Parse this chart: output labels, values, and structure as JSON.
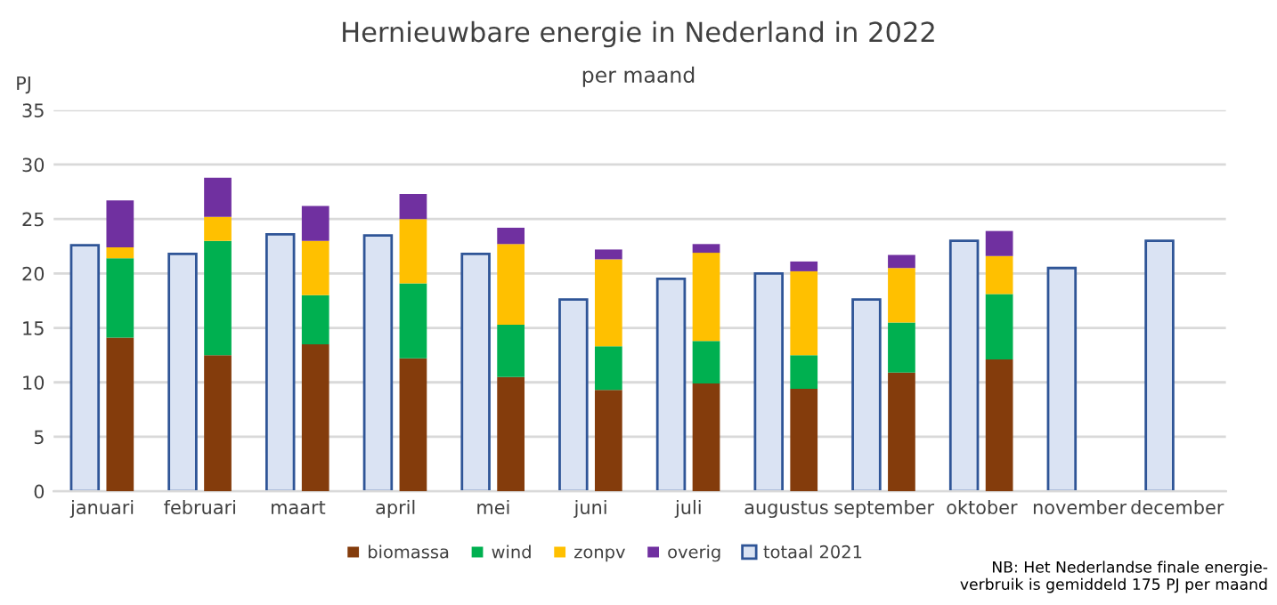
{
  "chart_data": [
    {
      "type": "bar",
      "title": "Hernieuwbare energie in Nederland in 2022",
      "subtitle": "per maand",
      "ylabel": "PJ",
      "categories": [
        "januari",
        "februari",
        "maart",
        "april",
        "mei",
        "juni",
        "juli",
        "augustus",
        "september",
        "oktober",
        "november",
        "december"
      ],
      "series": [
        {
          "name": "totaal 2021",
          "color": "#dae3f3",
          "values": [
            22.6,
            21.8,
            23.6,
            23.5,
            21.8,
            17.6,
            19.5,
            20.0,
            17.6,
            23.0,
            20.5,
            23.0
          ]
        }
      ],
      "ylim": [
        0,
        35
      ],
      "yticks": [
        0,
        5,
        10,
        15,
        20,
        25,
        30,
        35
      ],
      "grid": "y",
      "legend": "bottom",
      "annotations": [
        "NB: Het Nederlandse finale energie-\nverbruik is gemiddeld 175 PJ per maand"
      ]
    },
    {
      "type": "bar",
      "stacked": true,
      "categories": [
        null,
        null,
        null,
        null,
        null,
        null,
        null,
        null,
        null,
        null,
        null,
        null
      ],
      "series": [
        {
          "name": "biomassa",
          "color": "#843c0c",
          "values": [
            14.1,
            12.5,
            13.5,
            12.2,
            10.5,
            9.3,
            9.9,
            9.4,
            10.9,
            12.1,
            null,
            null
          ]
        },
        {
          "name": "wind",
          "color": "#00b050",
          "values": [
            7.3,
            10.5,
            4.5,
            6.9,
            4.8,
            4.0,
            3.9,
            3.1,
            4.6,
            6.0,
            null,
            null
          ]
        },
        {
          "name": "zonpv",
          "color": "#ffc000",
          "values": [
            1.0,
            2.2,
            5.0,
            5.9,
            7.4,
            8.0,
            8.1,
            7.7,
            5.0,
            3.5,
            null,
            null
          ]
        },
        {
          "name": "overig",
          "color": "#7030a0",
          "values": [
            4.3,
            3.6,
            3.2,
            2.3,
            1.5,
            0.9,
            0.8,
            0.9,
            1.2,
            2.3,
            null,
            null
          ]
        }
      ],
      "ylim": [
        0,
        35
      ],
      "legend": "bottom"
    }
  ]
}
